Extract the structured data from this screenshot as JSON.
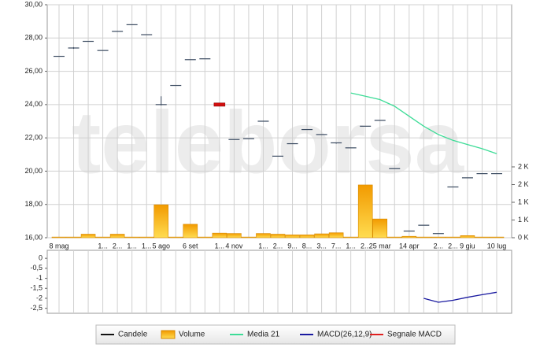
{
  "chart_data": [
    {
      "type": "candlestick",
      "watermark": "teleborsa",
      "categories": [
        "8 mag",
        null,
        null,
        "1...",
        "2...",
        "1...",
        "1...",
        "5 ago",
        null,
        "6 set",
        null,
        "1...",
        "4 nov",
        null,
        "1...",
        "2...",
        "9...",
        "8...",
        "3...",
        "7...",
        "1...",
        "2...",
        "25 mar",
        null,
        "14 apr",
        null,
        "2...",
        "2...",
        "9 giu",
        null,
        "10 lug"
      ],
      "ylim": [
        16,
        30
      ],
      "yticks": [
        {
          "value": 16,
          "label": "16,00"
        },
        {
          "value": 18,
          "label": "18,00"
        },
        {
          "value": 20,
          "label": "20,00"
        },
        {
          "value": 22,
          "label": "22,00"
        },
        {
          "value": 24,
          "label": "24,00"
        },
        {
          "value": 26,
          "label": "26,00"
        },
        {
          "value": 28,
          "label": "28,00"
        },
        {
          "value": 30,
          "label": "30,00"
        }
      ],
      "y2lim": [
        0,
        6578
      ],
      "y2ticks": [
        {
          "value": 0,
          "label": "0 K"
        },
        {
          "value": 500,
          "label": "1 K"
        },
        {
          "value": 1000,
          "label": "1 K"
        },
        {
          "value": 1500,
          "label": "2 K"
        },
        {
          "value": 2000,
          "label": "2 K"
        }
      ],
      "grid": true,
      "series": [
        {
          "name": "Candele",
          "kind": "candle",
          "color": "#3a4a60",
          "down_color": "#d01010",
          "open": [
            26.9,
            27.4,
            27.8,
            27.25,
            28.4,
            28.8,
            28.2,
            24.0,
            25.15,
            26.7,
            26.75,
            24.1,
            21.9,
            21.95,
            23.0,
            20.9,
            21.65,
            22.5,
            22.2,
            21.7,
            21.4,
            22.7,
            23.05,
            20.15,
            16.4,
            16.75,
            16.25,
            19.05,
            19.6,
            19.85,
            19.85
          ],
          "high": [
            26.9,
            27.45,
            27.8,
            27.25,
            28.4,
            28.8,
            28.2,
            24.5,
            25.15,
            26.7,
            26.75,
            24.1,
            21.9,
            21.95,
            23.0,
            20.9,
            21.65,
            22.5,
            22.2,
            21.7,
            21.4,
            22.7,
            23.05,
            20.15,
            16.4,
            16.75,
            16.25,
            19.05,
            19.6,
            19.85,
            19.85
          ],
          "low": [
            26.9,
            27.35,
            27.8,
            27.25,
            28.4,
            28.8,
            28.2,
            23.95,
            25.15,
            26.7,
            26.75,
            23.9,
            21.9,
            21.95,
            23.0,
            20.9,
            21.65,
            22.5,
            22.2,
            21.65,
            21.4,
            22.7,
            23.05,
            20.15,
            16.4,
            16.75,
            16.25,
            19.05,
            19.6,
            19.85,
            19.85
          ],
          "close": [
            26.9,
            27.4,
            27.8,
            27.25,
            28.4,
            28.8,
            28.2,
            24.0,
            25.15,
            26.7,
            26.75,
            23.9,
            21.9,
            21.95,
            23.0,
            20.9,
            21.65,
            22.5,
            22.2,
            21.7,
            21.4,
            22.7,
            23.05,
            20.15,
            16.4,
            16.75,
            16.25,
            19.05,
            19.6,
            19.85,
            19.85
          ]
        },
        {
          "name": "Volume",
          "kind": "bar",
          "axis": "y2",
          "color": "#f5a800",
          "values": [
            20,
            20,
            100,
            20,
            100,
            20,
            20,
            930,
            20,
            380,
            20,
            130,
            120,
            20,
            120,
            100,
            80,
            80,
            110,
            140,
            20,
            1490,
            530,
            20,
            40,
            20,
            20,
            20,
            60,
            20,
            20
          ]
        },
        {
          "name": "Media 21",
          "kind": "line",
          "color": "#3ddc97",
          "values": [
            null,
            null,
            null,
            null,
            null,
            null,
            null,
            null,
            null,
            null,
            null,
            null,
            null,
            null,
            null,
            null,
            null,
            null,
            null,
            null,
            24.7,
            24.5,
            24.3,
            23.9,
            23.3,
            22.7,
            22.2,
            21.85,
            21.6,
            21.35,
            21.05
          ]
        }
      ]
    },
    {
      "type": "line",
      "ylim": [
        -2.75,
        0.4
      ],
      "yticks": [
        {
          "value": -2.5,
          "label": "-2,5"
        },
        -2,
        {
          "value": -1.5,
          "label": "-1,5"
        },
        -1,
        {
          "value": -0.5,
          "label": "-0,5"
        },
        0
      ],
      "series": [
        {
          "name": "MACD(26,12,9)",
          "kind": "line",
          "color": "#1a1aa0",
          "values": [
            null,
            null,
            null,
            null,
            null,
            null,
            null,
            null,
            null,
            null,
            null,
            null,
            null,
            null,
            null,
            null,
            null,
            null,
            null,
            null,
            null,
            null,
            null,
            null,
            null,
            -2.0,
            -2.2,
            -2.1,
            -1.95,
            -1.82,
            -1.7
          ]
        },
        {
          "name": "Segnale MACD",
          "kind": "line",
          "color": "#e02020",
          "values": [
            null,
            null,
            null,
            null,
            null,
            null,
            null,
            null,
            null,
            null,
            null,
            null,
            null,
            null,
            null,
            null,
            null,
            null,
            null,
            null,
            null,
            null,
            null,
            null,
            null,
            null,
            null,
            null,
            null,
            null,
            null
          ]
        }
      ]
    }
  ]
}
